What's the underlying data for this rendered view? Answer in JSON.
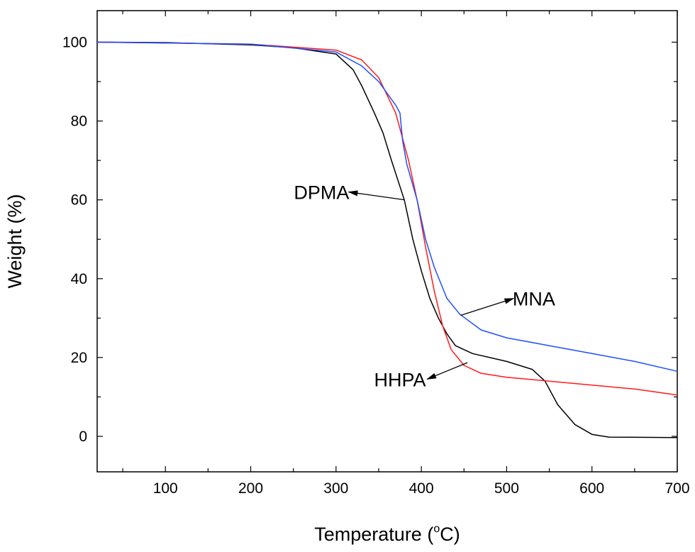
{
  "chart_data": {
    "type": "line",
    "title": "",
    "xlabel": "Temperature (",
    "xlabel_sup": "o",
    "xlabel_end": "C)",
    "ylabel": "Weight (%)",
    "xlim": [
      20,
      700
    ],
    "ylim": [
      -9,
      108
    ],
    "xticks": [
      100,
      200,
      300,
      400,
      500,
      600,
      700
    ],
    "yticks": [
      0,
      20,
      40,
      60,
      80,
      100
    ],
    "grid": false,
    "series": [
      {
        "name": "DPMA",
        "color": "#000000",
        "points": [
          [
            20,
            100
          ],
          [
            100,
            99.9
          ],
          [
            200,
            99.3
          ],
          [
            250,
            98.6
          ],
          [
            300,
            97
          ],
          [
            320,
            93
          ],
          [
            330,
            89
          ],
          [
            345,
            82
          ],
          [
            355,
            77
          ],
          [
            365,
            70
          ],
          [
            380,
            60
          ],
          [
            390,
            50
          ],
          [
            400,
            42
          ],
          [
            410,
            35
          ],
          [
            420,
            30
          ],
          [
            430,
            26
          ],
          [
            440,
            23
          ],
          [
            460,
            21
          ],
          [
            500,
            19
          ],
          [
            530,
            17
          ],
          [
            545,
            14
          ],
          [
            560,
            8
          ],
          [
            580,
            3
          ],
          [
            600,
            0.5
          ],
          [
            620,
            -0.2
          ],
          [
            700,
            -0.3
          ]
        ],
        "label_at": [
          283,
          62
        ],
        "arrow_from": [
          380,
          60
        ]
      },
      {
        "name": "HHPA",
        "color": "#ff1a1a",
        "points": [
          [
            20,
            100
          ],
          [
            200,
            99.5
          ],
          [
            300,
            98
          ],
          [
            330,
            95.5
          ],
          [
            350,
            91
          ],
          [
            370,
            82
          ],
          [
            385,
            70
          ],
          [
            395,
            60
          ],
          [
            405,
            48
          ],
          [
            415,
            37
          ],
          [
            425,
            28
          ],
          [
            435,
            22
          ],
          [
            450,
            18
          ],
          [
            470,
            16
          ],
          [
            500,
            15
          ],
          [
            550,
            14
          ],
          [
            600,
            13
          ],
          [
            650,
            12
          ],
          [
            700,
            10.5
          ]
        ],
        "label_at": [
          375,
          14.5
        ],
        "arrow_from": [
          454,
          18.7
        ]
      },
      {
        "name": "MNA",
        "color": "#1f4fff",
        "points": [
          [
            20,
            100
          ],
          [
            200,
            99.5
          ],
          [
            300,
            97.5
          ],
          [
            330,
            94
          ],
          [
            350,
            90
          ],
          [
            370,
            84
          ],
          [
            375,
            82
          ],
          [
            378,
            75
          ],
          [
            383,
            69
          ],
          [
            395,
            60
          ],
          [
            405,
            50
          ],
          [
            415,
            43
          ],
          [
            430,
            35
          ],
          [
            445,
            31
          ],
          [
            470,
            27
          ],
          [
            500,
            25
          ],
          [
            550,
            23
          ],
          [
            600,
            21
          ],
          [
            650,
            19
          ],
          [
            700,
            16.5
          ]
        ],
        "label_at": [
          532,
          35
        ],
        "arrow_from": [
          446,
          30.7
        ]
      }
    ]
  }
}
